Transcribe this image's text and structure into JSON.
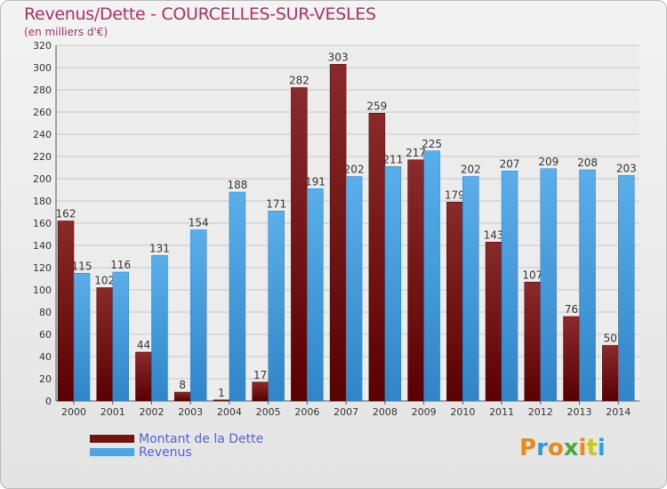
{
  "title": "Revenus/Dette - COURCELLES-SUR-VESLES",
  "subtitle": "(en milliers d'€)",
  "logo": "Proxiti",
  "colors": {
    "dette": "#7a1010",
    "revenus": "#4fa4e4",
    "title": "#b03060",
    "legend_text": "#5560e0"
  },
  "legend": [
    {
      "label": "Montant de la Dette",
      "color": "#7a1010"
    },
    {
      "label": "Revenus",
      "color": "#4fa4e4"
    }
  ],
  "chart_data": {
    "type": "bar",
    "title": "Revenus/Dette - COURCELLES-SUR-VESLES",
    "subtitle": "(en milliers d'€)",
    "categories": [
      "2000",
      "2001",
      "2002",
      "2003",
      "2004",
      "2005",
      "2006",
      "2007",
      "2008",
      "2009",
      "2010",
      "2011",
      "2012",
      "2013",
      "2014"
    ],
    "series": [
      {
        "name": "Montant de la Dette",
        "values": [
          162,
          102,
          44,
          8,
          1,
          17,
          282,
          303,
          259,
          217,
          179,
          143,
          107,
          76,
          50
        ]
      },
      {
        "name": "Revenus",
        "values": [
          115,
          116,
          131,
          154,
          188,
          171,
          191,
          202,
          211,
          225,
          202,
          207,
          209,
          208,
          203
        ]
      }
    ],
    "ylim": [
      0,
      320
    ],
    "yticks": [
      0,
      20,
      40,
      60,
      80,
      100,
      120,
      140,
      160,
      180,
      200,
      220,
      240,
      260,
      280,
      300,
      320
    ],
    "grid": true,
    "legend_position": "bottom-left"
  }
}
